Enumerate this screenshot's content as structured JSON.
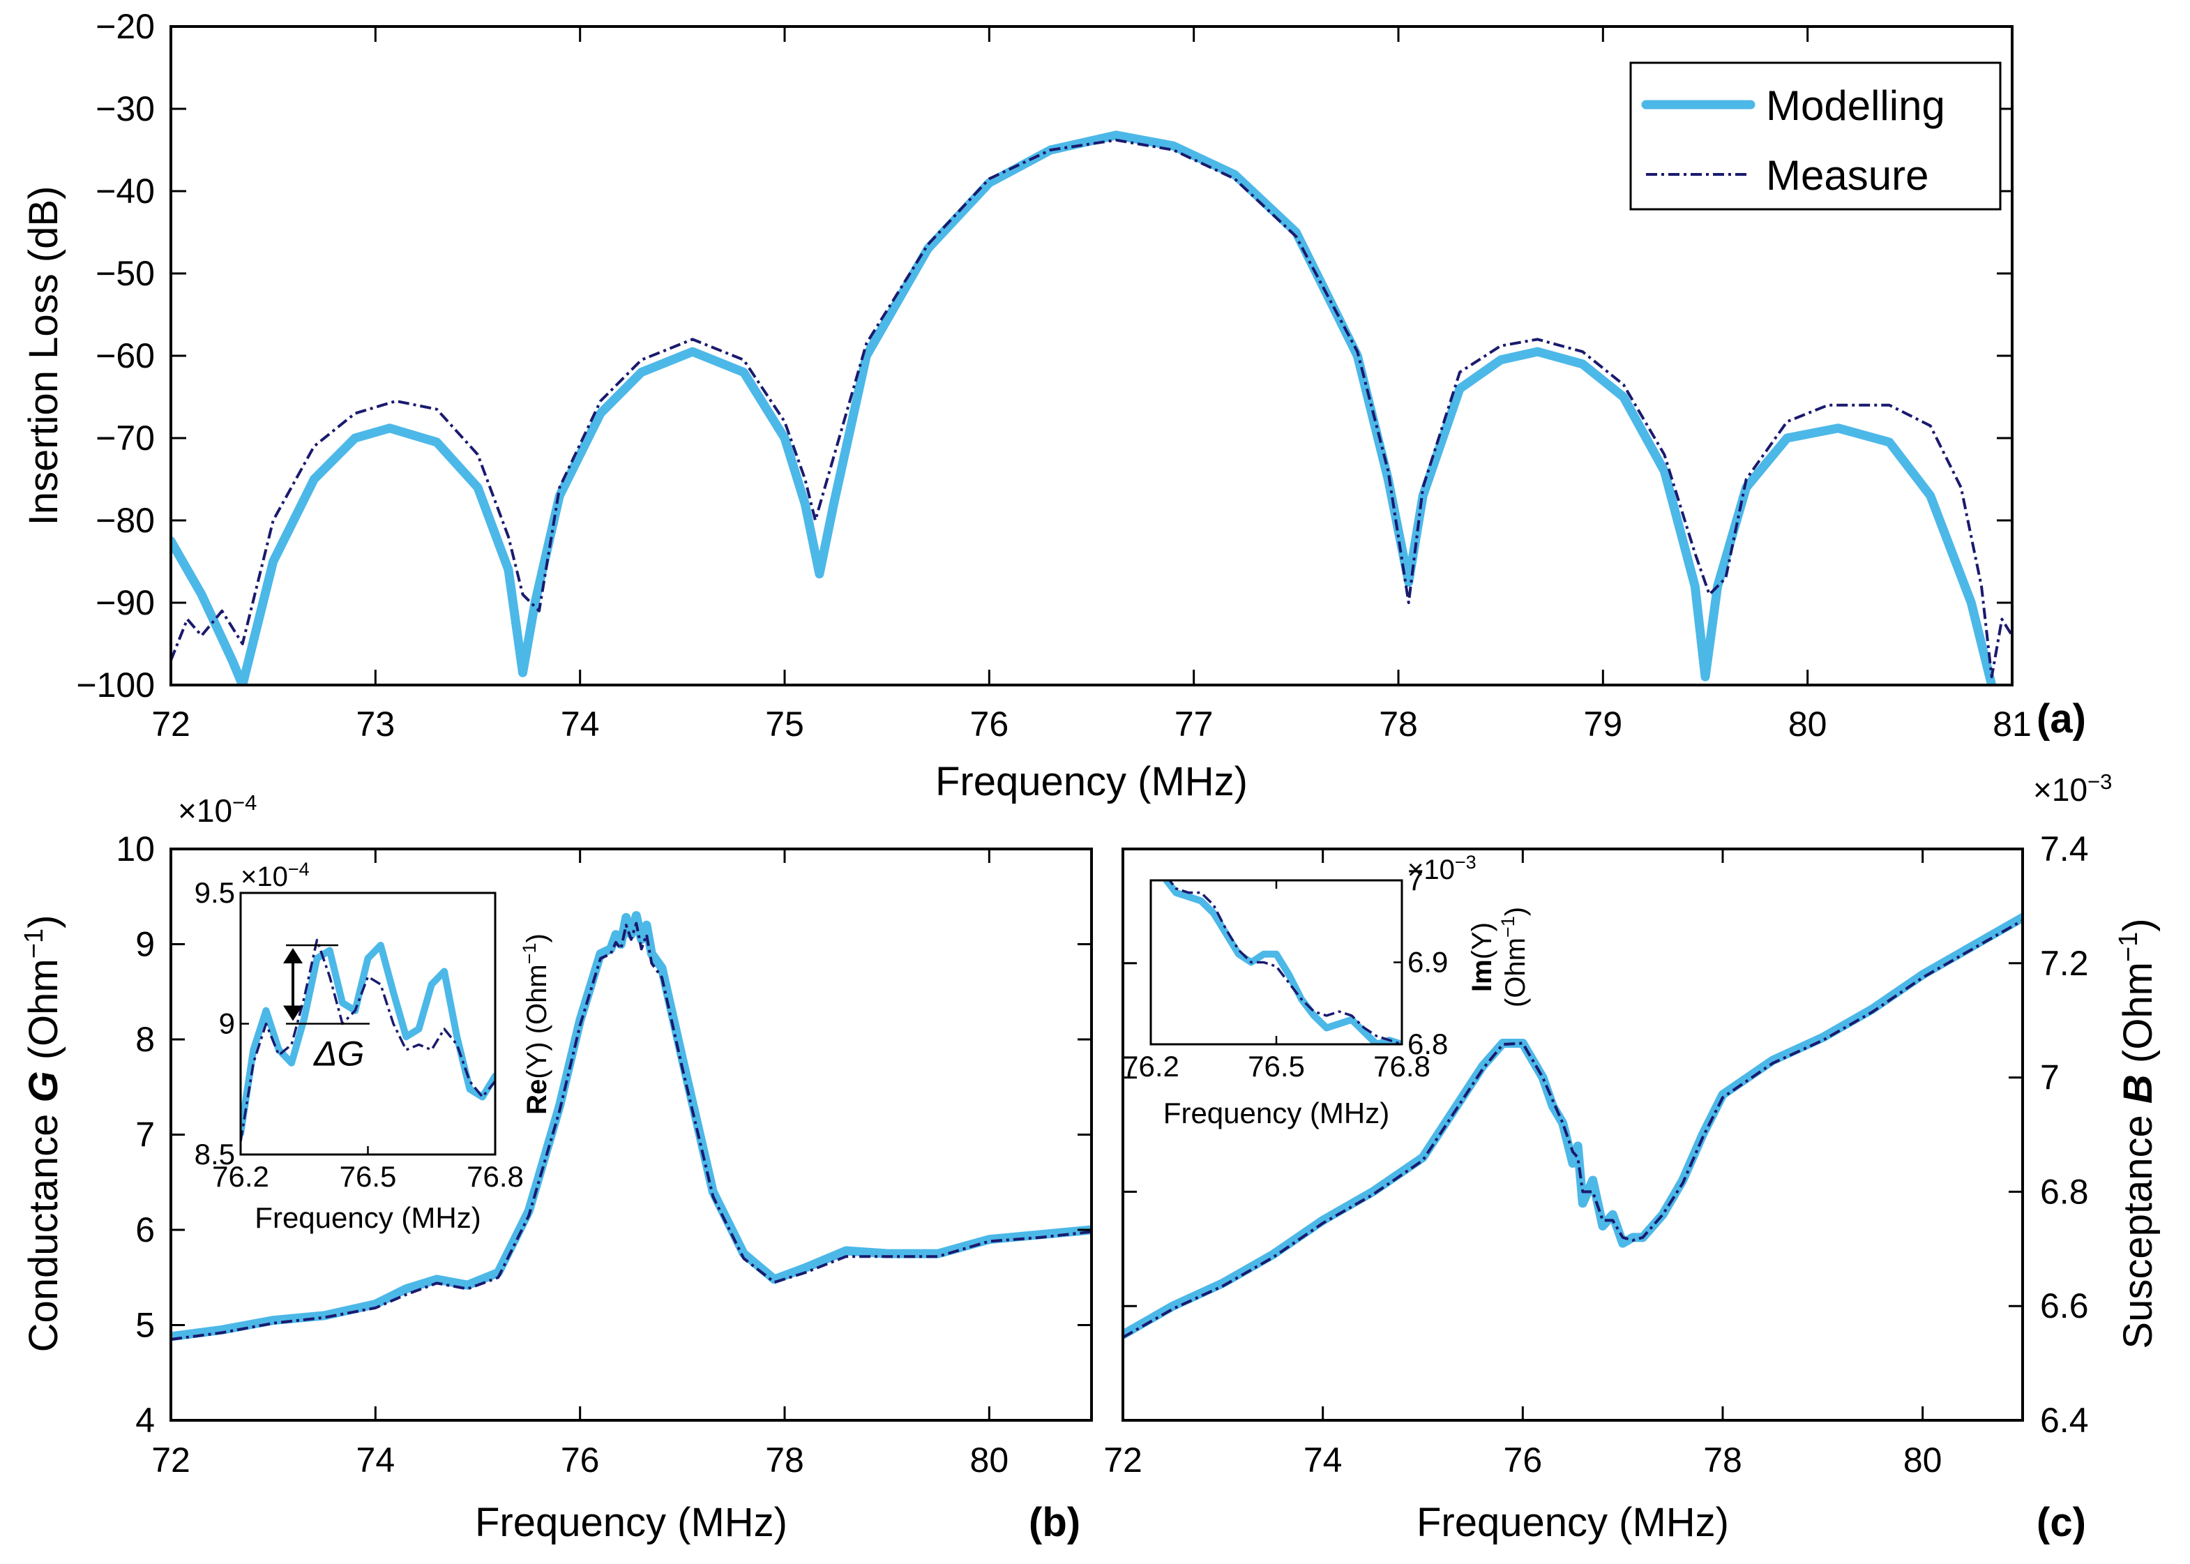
{
  "colors": {
    "modelling": "#4cb8e8",
    "measure": "#1a1a6e",
    "axes": "#000000"
  },
  "chart_data": [
    {
      "id": "a",
      "type": "line",
      "panel_label": "(a)",
      "xlabel": "Frequency (MHz)",
      "ylabel": "Insertion Loss (dB)",
      "xlim": [
        72,
        81
      ],
      "ylim": [
        -100,
        -20
      ],
      "xticks": [
        72,
        73,
        74,
        75,
        76,
        77,
        78,
        79,
        80,
        81
      ],
      "yticks": [
        -100,
        -90,
        -80,
        -70,
        -60,
        -50,
        -40,
        -30,
        -20
      ],
      "legend": {
        "position": "top-right",
        "entries": [
          "Modelling",
          "Measure"
        ]
      },
      "series": [
        {
          "name": "Modelling",
          "x": [
            72.0,
            72.15,
            72.3,
            72.35,
            72.5,
            72.7,
            72.9,
            73.07,
            73.3,
            73.5,
            73.65,
            73.72,
            73.78,
            73.9,
            74.1,
            74.3,
            74.55,
            74.8,
            75.0,
            75.1,
            75.17,
            75.24,
            75.4,
            75.7,
            76.0,
            76.3,
            76.62,
            76.9,
            77.2,
            77.5,
            77.8,
            77.95,
            78.05,
            78.12,
            78.3,
            78.5,
            78.68,
            78.9,
            79.1,
            79.3,
            79.45,
            79.5,
            79.56,
            79.7,
            79.9,
            80.15,
            80.4,
            80.6,
            80.8,
            80.9
          ],
          "y": [
            -82.5,
            -89,
            -97,
            -100,
            -85,
            -75,
            -70,
            -68.8,
            -70.5,
            -76,
            -86,
            -98.5,
            -90,
            -77,
            -67,
            -62,
            -59.5,
            -62,
            -70,
            -78,
            -86.5,
            -78,
            -60,
            -47,
            -39,
            -35,
            -33.2,
            -34.5,
            -38,
            -45,
            -60,
            -75,
            -87.5,
            -77,
            -64,
            -60.5,
            -59.5,
            -61,
            -65,
            -74,
            -88,
            -99,
            -88,
            -76,
            -70,
            -68.8,
            -70.5,
            -77,
            -90,
            -100
          ]
        },
        {
          "name": "Measure",
          "x": [
            72.0,
            72.08,
            72.15,
            72.25,
            72.35,
            72.5,
            72.7,
            72.9,
            73.1,
            73.3,
            73.5,
            73.65,
            73.72,
            73.8,
            73.9,
            74.1,
            74.3,
            74.55,
            74.8,
            75.0,
            75.1,
            75.15,
            75.22,
            75.4,
            75.7,
            76.0,
            76.3,
            76.62,
            76.9,
            77.2,
            77.5,
            77.8,
            77.95,
            78.05,
            78.12,
            78.3,
            78.5,
            78.68,
            78.9,
            79.1,
            79.3,
            79.45,
            79.52,
            79.6,
            79.7,
            79.9,
            80.1,
            80.4,
            80.6,
            80.75,
            80.85,
            80.9,
            80.95,
            81.0
          ],
          "y": [
            -97,
            -92,
            -94,
            -91,
            -95,
            -80,
            -71,
            -67,
            -65.5,
            -66.5,
            -72,
            -82,
            -89,
            -91,
            -76,
            -65.5,
            -60.5,
            -58,
            -60.5,
            -68,
            -75,
            -80,
            -74,
            -58.5,
            -46.5,
            -38.5,
            -35,
            -33.8,
            -35,
            -38.5,
            -45.5,
            -59.5,
            -74,
            -90,
            -76,
            -62,
            -58.8,
            -58,
            -59.5,
            -63.5,
            -72,
            -84,
            -89,
            -87,
            -75,
            -68,
            -66,
            -66,
            -68.5,
            -76,
            -88,
            -99,
            -92,
            -94
          ]
        }
      ]
    },
    {
      "id": "b",
      "type": "line",
      "panel_label": "(b)",
      "xlabel": "Frequency (MHz)",
      "ylabel_main": "Conductance ",
      "ylabel_var": "G",
      "ylabel_unit": "  (Ohm",
      "ylabel_sup": "−1",
      "ylabel_close": ")",
      "y_multiplier": "×10",
      "y_multiplier_exp": "−4",
      "xlim": [
        72,
        81
      ],
      "ylim": [
        4,
        10
      ],
      "xticks": [
        72,
        74,
        76,
        78,
        80
      ],
      "yticks": [
        4,
        5,
        6,
        7,
        8,
        9,
        10
      ],
      "series": [
        {
          "name": "Modelling",
          "x": [
            72.0,
            72.5,
            73.0,
            73.5,
            74.0,
            74.3,
            74.6,
            74.9,
            75.2,
            75.5,
            75.8,
            76.0,
            76.2,
            76.3,
            76.35,
            76.4,
            76.45,
            76.5,
            76.55,
            76.6,
            76.65,
            76.7,
            76.8,
            77.0,
            77.3,
            77.6,
            77.9,
            78.2,
            78.6,
            79.0,
            79.5,
            80.0,
            80.5,
            81.0
          ],
          "y": [
            4.88,
            4.95,
            5.05,
            5.1,
            5.22,
            5.38,
            5.48,
            5.42,
            5.55,
            6.2,
            7.3,
            8.2,
            8.9,
            8.95,
            9.1,
            9.0,
            9.28,
            9.1,
            9.3,
            9.05,
            9.2,
            8.9,
            8.75,
            7.8,
            6.4,
            5.75,
            5.48,
            5.6,
            5.78,
            5.75,
            5.75,
            5.9,
            5.95,
            6.0
          ]
        },
        {
          "name": "Measure",
          "x": [
            72.0,
            72.5,
            73.0,
            73.5,
            74.0,
            74.3,
            74.6,
            74.9,
            75.2,
            75.5,
            75.8,
            76.0,
            76.2,
            76.3,
            76.35,
            76.4,
            76.45,
            76.5,
            76.55,
            76.6,
            76.65,
            76.7,
            76.8,
            77.0,
            77.3,
            77.6,
            77.9,
            78.2,
            78.6,
            79.0,
            79.5,
            80.0,
            80.5,
            81.0
          ],
          "y": [
            4.85,
            4.92,
            5.02,
            5.08,
            5.18,
            5.32,
            5.44,
            5.38,
            5.5,
            6.15,
            7.25,
            8.15,
            8.85,
            8.9,
            9.02,
            8.95,
            9.2,
            9.05,
            9.22,
            8.95,
            9.1,
            8.8,
            8.65,
            7.7,
            6.35,
            5.7,
            5.45,
            5.55,
            5.72,
            5.72,
            5.72,
            5.88,
            5.92,
            5.98
          ]
        }
      ],
      "inset": {
        "xlabel": "Frequency (MHz)",
        "ylabel_main": "Re",
        "ylabel_arg": "(Y)",
        "ylabel_unit": "(Ohm",
        "ylabel_sup": "−1",
        "ylabel_close": ")",
        "y_multiplier": "×10",
        "y_multiplier_exp": "−4",
        "annotation": "ΔG",
        "xlim": [
          76.2,
          76.8
        ],
        "ylim": [
          8.5,
          9.5
        ],
        "xticks": [
          "76.2",
          "76.5",
          "76.8"
        ],
        "yticks": [
          "8.5",
          "9",
          "9.5"
        ],
        "series": [
          {
            "name": "Modelling",
            "x": [
              76.2,
              76.23,
              76.26,
              76.29,
              76.32,
              76.35,
              76.38,
              76.41,
              76.44,
              76.47,
              76.5,
              76.53,
              76.56,
              76.59,
              76.62,
              76.65,
              76.68,
              76.71,
              76.74,
              76.77,
              76.8
            ],
            "y": [
              8.58,
              8.9,
              9.05,
              8.9,
              8.85,
              9.02,
              9.25,
              9.28,
              9.08,
              9.05,
              9.25,
              9.3,
              9.12,
              8.95,
              8.98,
              9.15,
              9.2,
              8.95,
              8.75,
              8.72,
              8.8
            ]
          },
          {
            "name": "Measure",
            "x": [
              76.2,
              76.23,
              76.26,
              76.29,
              76.32,
              76.35,
              76.38,
              76.41,
              76.44,
              76.47,
              76.5,
              76.53,
              76.56,
              76.59,
              76.62,
              76.65,
              76.68,
              76.71,
              76.74,
              76.77,
              76.8
            ],
            "y": [
              8.55,
              8.85,
              9.0,
              8.88,
              8.92,
              9.1,
              9.32,
              9.18,
              9.0,
              9.05,
              9.18,
              9.15,
              9.0,
              8.9,
              8.92,
              8.9,
              8.98,
              8.92,
              8.78,
              8.72,
              8.78
            ]
          }
        ]
      }
    },
    {
      "id": "c",
      "type": "line",
      "panel_label": "(c)",
      "xlabel": "Frequency (MHz)",
      "ylabel_main": "Susceptance ",
      "ylabel_var": "B",
      "ylabel_unit": "  (Ohm",
      "ylabel_sup": "−1",
      "ylabel_close": ")",
      "y_multiplier": "×10",
      "y_multiplier_exp": "−3",
      "xlim": [
        72,
        81
      ],
      "ylim": [
        6.4,
        7.4
      ],
      "xticks": [
        72,
        74,
        76,
        78,
        80
      ],
      "yticks": [
        "6.4",
        "6.6",
        "6.8",
        "7",
        "7.2",
        "7.4"
      ],
      "series": [
        {
          "name": "Modelling",
          "x": [
            72.0,
            72.5,
            73.0,
            73.5,
            74.0,
            74.5,
            75.0,
            75.3,
            75.6,
            75.8,
            76.0,
            76.2,
            76.3,
            76.4,
            76.5,
            76.55,
            76.6,
            76.7,
            76.8,
            76.9,
            77.0,
            77.1,
            77.2,
            77.4,
            77.6,
            77.8,
            78.0,
            78.5,
            79.0,
            79.5,
            80.0,
            80.5,
            81.0
          ],
          "y": [
            6.55,
            6.6,
            6.64,
            6.69,
            6.75,
            6.8,
            6.86,
            6.94,
            7.02,
            7.06,
            7.06,
            7.0,
            6.95,
            6.92,
            6.85,
            6.88,
            6.78,
            6.82,
            6.74,
            6.76,
            6.71,
            6.72,
            6.72,
            6.76,
            6.82,
            6.9,
            6.97,
            7.03,
            7.07,
            7.12,
            7.18,
            7.23,
            7.28
          ]
        },
        {
          "name": "Measure",
          "x": [
            72.0,
            72.5,
            73.0,
            73.5,
            74.0,
            74.5,
            75.0,
            75.3,
            75.6,
            75.8,
            76.0,
            76.2,
            76.3,
            76.4,
            76.5,
            76.55,
            76.6,
            76.7,
            76.8,
            76.9,
            77.0,
            77.1,
            77.2,
            77.4,
            77.6,
            77.8,
            78.0,
            78.5,
            79.0,
            79.5,
            80.0,
            80.5,
            81.0
          ],
          "y": [
            6.545,
            6.595,
            6.635,
            6.685,
            6.745,
            6.795,
            6.855,
            6.935,
            7.015,
            7.058,
            7.06,
            7.0,
            6.96,
            6.92,
            6.87,
            6.86,
            6.8,
            6.8,
            6.75,
            6.75,
            6.72,
            6.715,
            6.72,
            6.76,
            6.815,
            6.895,
            6.965,
            7.025,
            7.065,
            7.115,
            7.175,
            7.225,
            7.275
          ]
        }
      ],
      "inset": {
        "xlabel": "Frequency (MHz)",
        "ylabel_main": "Im",
        "ylabel_arg": "(Y)",
        "ylabel_unit": "(Ohm",
        "ylabel_sup": "−1",
        "ylabel_close": ")",
        "y_multiplier": "×10",
        "y_multiplier_exp": "−3",
        "xlim": [
          76.2,
          76.8
        ],
        "ylim": [
          6.8,
          7.0
        ],
        "xticks": [
          "76.2",
          "76.5",
          "76.8"
        ],
        "yticks": [
          "6.8",
          "6.9",
          "7"
        ],
        "series": [
          {
            "name": "Modelling",
            "x": [
              76.2,
              76.23,
              76.26,
              76.29,
              76.32,
              76.35,
              76.38,
              76.41,
              76.44,
              76.47,
              76.5,
              76.53,
              76.56,
              76.59,
              76.62,
              76.65,
              76.68,
              76.71,
              76.74,
              76.77,
              76.8
            ],
            "y": [
              7.02,
              7.005,
              6.985,
              6.98,
              6.975,
              6.96,
              6.935,
              6.91,
              6.9,
              6.91,
              6.91,
              6.885,
              6.855,
              6.835,
              6.82,
              6.825,
              6.83,
              6.815,
              6.8,
              6.805,
              6.8
            ]
          },
          {
            "name": "Measure",
            "x": [
              76.2,
              76.23,
              76.26,
              76.29,
              76.32,
              76.35,
              76.38,
              76.41,
              76.44,
              76.47,
              76.5,
              76.53,
              76.56,
              76.59,
              76.62,
              76.65,
              76.68,
              76.71,
              76.74,
              76.77,
              76.8
            ],
            "y": [
              7.025,
              7.01,
              6.99,
              6.985,
              6.985,
              6.97,
              6.94,
              6.915,
              6.9,
              6.9,
              6.895,
              6.875,
              6.855,
              6.84,
              6.835,
              6.84,
              6.835,
              6.82,
              6.81,
              6.805,
              6.8
            ]
          }
        ]
      }
    }
  ]
}
